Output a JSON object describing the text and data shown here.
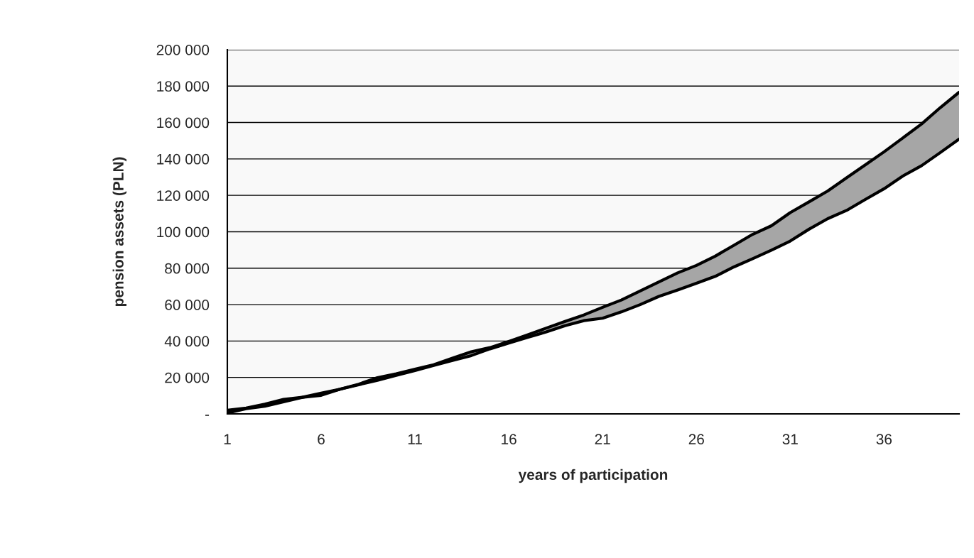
{
  "chart_data": {
    "type": "area",
    "xlabel": "years of participation",
    "ylabel": "pension assets (PLN)",
    "categories": [
      "1",
      null,
      null,
      null,
      null,
      "6",
      null,
      null,
      null,
      null,
      "11",
      null,
      null,
      null,
      null,
      "16",
      null,
      null,
      null,
      null,
      "21",
      null,
      null,
      null,
      null,
      "26",
      null,
      null,
      null,
      null,
      "31",
      null,
      null,
      null,
      null,
      "36",
      null,
      null,
      null,
      null
    ],
    "series": [
      {
        "color": "#ffffff",
        "values": [
          500,
          2800,
          4200,
          6600,
          9100,
          10200,
          13500,
          16000,
          18400,
          21100,
          23800,
          26600,
          29300,
          32000,
          35700,
          38900,
          42000,
          45000,
          48400,
          51200,
          52500,
          56000,
          60000,
          64500,
          68000,
          71700,
          75500,
          80700,
          85200,
          89900,
          94900,
          101400,
          107200,
          111700,
          117700,
          123600,
          130600,
          136300,
          143500,
          150900
        ]
      },
      {
        "color": "#a6a6a6",
        "values": [
          2000,
          3200,
          5300,
          8000,
          9100,
          11400,
          13500,
          16300,
          19900,
          22000,
          24500,
          27000,
          30600,
          34100,
          36400,
          39800,
          43400,
          47100,
          50800,
          54300,
          58500,
          62500,
          67500,
          72500,
          77400,
          81500,
          86600,
          92600,
          98600,
          103300,
          110500,
          116400,
          122400,
          129600,
          136700,
          143900,
          151500,
          159200,
          168200,
          176600
        ]
      }
    ],
    "ylim": [
      0,
      200000
    ],
    "yticks": [
      {
        "value": 0,
        "label": "-"
      },
      {
        "value": 20000,
        "label": "20 000"
      },
      {
        "value": 40000,
        "label": "40 000"
      },
      {
        "value": 60000,
        "label": "60 000"
      },
      {
        "value": 80000,
        "label": "80 000"
      },
      {
        "value": 100000,
        "label": "100 000"
      },
      {
        "value": 120000,
        "label": "120 000"
      },
      {
        "value": 140000,
        "label": "140 000"
      },
      {
        "value": 160000,
        "label": "160 000"
      },
      {
        "value": 180000,
        "label": "180 000"
      },
      {
        "value": 200000,
        "label": "200 000"
      }
    ],
    "grid": "y"
  }
}
